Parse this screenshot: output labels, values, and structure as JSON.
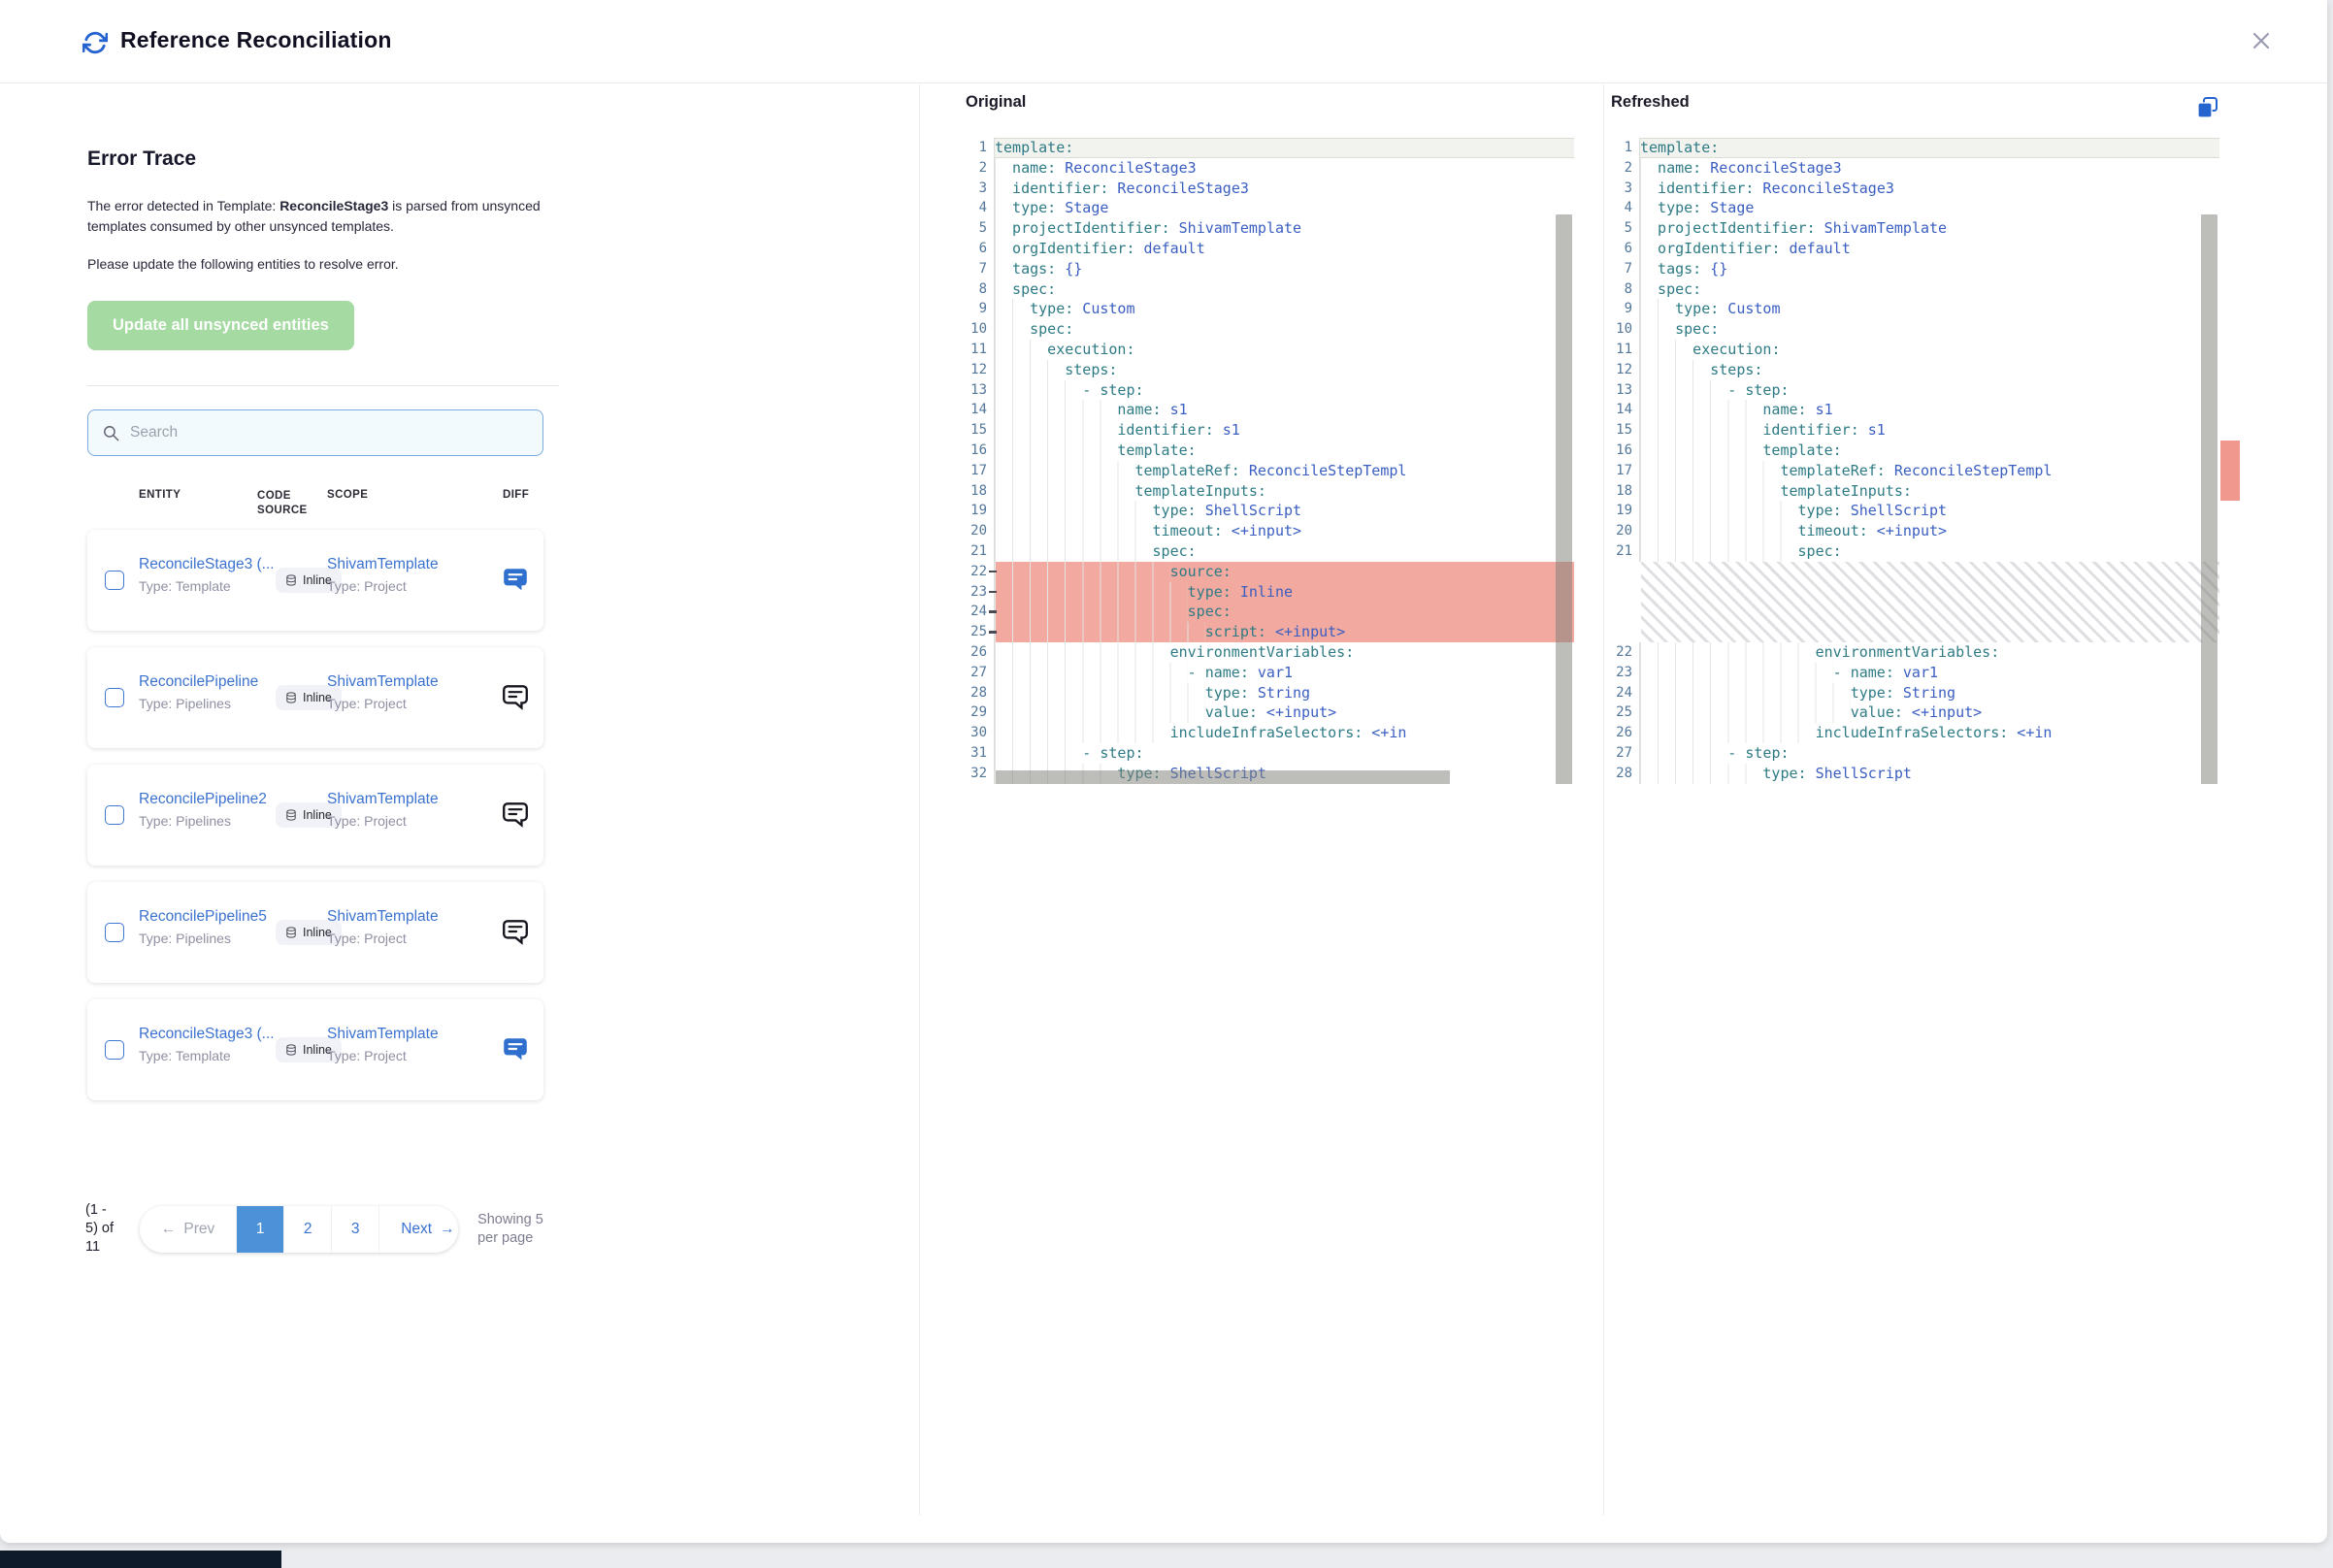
{
  "header": {
    "title": "Reference Reconciliation"
  },
  "error_trace": {
    "heading": "Error Trace",
    "desc_prefix": "The error detected in Template: ",
    "desc_bold": "ReconcileStage3",
    "desc_suffix": " is parsed from unsynced templates consumed by other unsynced templates.",
    "desc_line2": "Please update the following entities to resolve error.",
    "update_button": "Update all unsynced entities"
  },
  "search": {
    "placeholder": "Search"
  },
  "table": {
    "headers": {
      "entity": "ENTITY",
      "code_source": "CODE SOURCE",
      "scope": "SCOPE",
      "diff": "DIFF"
    },
    "rows": [
      {
        "entity": "ReconcileStage3 (...",
        "entity_type": "Type: Template",
        "code_source": "Inline",
        "scope": "ShivamTemplate",
        "scope_type": "Type: Project",
        "diff_icon": "blue"
      },
      {
        "entity": "ReconcilePipeline",
        "entity_type": "Type: Pipelines",
        "code_source": "Inline",
        "scope": "ShivamTemplate",
        "scope_type": "Type: Project",
        "diff_icon": "dark"
      },
      {
        "entity": "ReconcilePipeline2",
        "entity_type": "Type: Pipelines",
        "code_source": "Inline",
        "scope": "ShivamTemplate",
        "scope_type": "Type: Project",
        "diff_icon": "dark"
      },
      {
        "entity": "ReconcilePipeline5",
        "entity_type": "Type: Pipelines",
        "code_source": "Inline",
        "scope": "ShivamTemplate",
        "scope_type": "Type: Project",
        "diff_icon": "dark"
      },
      {
        "entity": "ReconcileStage3 (...",
        "entity_type": "Type: Template",
        "code_source": "Inline",
        "scope": "ShivamTemplate",
        "scope_type": "Type: Project",
        "diff_icon": "blue"
      }
    ]
  },
  "pagination": {
    "range_text": "(1 - 5) of 11",
    "prev_label": "Prev",
    "pages": [
      "1",
      "2",
      "3"
    ],
    "active_page": "1",
    "next_label": "Next",
    "per_page_text": "Showing 5 per page"
  },
  "diff_view": {
    "original_title": "Original",
    "refreshed_title": "Refreshed",
    "original_lines": [
      {
        "n": "1",
        "i": 0,
        "k": "template:",
        "v": "",
        "cur": true
      },
      {
        "n": "2",
        "i": 2,
        "k": "name:",
        "v": "ReconcileStage3"
      },
      {
        "n": "3",
        "i": 2,
        "k": "identifier:",
        "v": "ReconcileStage3"
      },
      {
        "n": "4",
        "i": 2,
        "k": "type:",
        "v": "Stage"
      },
      {
        "n": "5",
        "i": 2,
        "k": "projectIdentifier:",
        "v": "ShivamTemplate"
      },
      {
        "n": "6",
        "i": 2,
        "k": "orgIdentifier:",
        "v": "default"
      },
      {
        "n": "7",
        "i": 2,
        "k": "tags:",
        "v": "{}"
      },
      {
        "n": "8",
        "i": 2,
        "k": "spec:",
        "v": ""
      },
      {
        "n": "9",
        "i": 4,
        "k": "type:",
        "v": "Custom"
      },
      {
        "n": "10",
        "i": 4,
        "k": "spec:",
        "v": ""
      },
      {
        "n": "11",
        "i": 6,
        "k": "execution:",
        "v": ""
      },
      {
        "n": "12",
        "i": 8,
        "k": "steps:",
        "v": ""
      },
      {
        "n": "13",
        "i": 10,
        "k": "- step:",
        "v": ""
      },
      {
        "n": "14",
        "i": 14,
        "k": "name:",
        "v": "s1"
      },
      {
        "n": "15",
        "i": 14,
        "k": "identifier:",
        "v": "s1"
      },
      {
        "n": "16",
        "i": 14,
        "k": "template:",
        "v": ""
      },
      {
        "n": "17",
        "i": 16,
        "k": "templateRef:",
        "v": "ReconcileStepTempl"
      },
      {
        "n": "18",
        "i": 16,
        "k": "templateInputs:",
        "v": ""
      },
      {
        "n": "19",
        "i": 18,
        "k": "type:",
        "v": "ShellScript"
      },
      {
        "n": "20",
        "i": 18,
        "k": "timeout:",
        "v": "<+input>"
      },
      {
        "n": "21",
        "i": 18,
        "k": "spec:",
        "v": ""
      },
      {
        "n": "22",
        "i": 20,
        "k": "source:",
        "v": "",
        "del": true
      },
      {
        "n": "23",
        "i": 22,
        "k": "type:",
        "v": "Inline",
        "del": true
      },
      {
        "n": "24",
        "i": 22,
        "k": "spec:",
        "v": "",
        "del": true
      },
      {
        "n": "25",
        "i": 24,
        "k": "script:",
        "v": "<+input>",
        "del": true
      },
      {
        "n": "26",
        "i": 20,
        "k": "environmentVariables:",
        "v": ""
      },
      {
        "n": "27",
        "i": 22,
        "k": "- name:",
        "v": "var1"
      },
      {
        "n": "28",
        "i": 24,
        "k": "type:",
        "v": "String"
      },
      {
        "n": "29",
        "i": 24,
        "k": "value:",
        "v": "<+input>"
      },
      {
        "n": "30",
        "i": 20,
        "k": "includeInfraSelectors:",
        "v": "<+in"
      },
      {
        "n": "31",
        "i": 10,
        "k": "- step:",
        "v": ""
      },
      {
        "n": "32",
        "i": 14,
        "k": "type:",
        "v": "ShellScript"
      }
    ],
    "refreshed_lines": [
      {
        "n": "1",
        "i": 0,
        "k": "template:",
        "v": "",
        "cur": true
      },
      {
        "n": "2",
        "i": 2,
        "k": "name:",
        "v": "ReconcileStage3"
      },
      {
        "n": "3",
        "i": 2,
        "k": "identifier:",
        "v": "ReconcileStage3"
      },
      {
        "n": "4",
        "i": 2,
        "k": "type:",
        "v": "Stage"
      },
      {
        "n": "5",
        "i": 2,
        "k": "projectIdentifier:",
        "v": "ShivamTemplate"
      },
      {
        "n": "6",
        "i": 2,
        "k": "orgIdentifier:",
        "v": "default"
      },
      {
        "n": "7",
        "i": 2,
        "k": "tags:",
        "v": "{}"
      },
      {
        "n": "8",
        "i": 2,
        "k": "spec:",
        "v": ""
      },
      {
        "n": "9",
        "i": 4,
        "k": "type:",
        "v": "Custom"
      },
      {
        "n": "10",
        "i": 4,
        "k": "spec:",
        "v": ""
      },
      {
        "n": "11",
        "i": 6,
        "k": "execution:",
        "v": ""
      },
      {
        "n": "12",
        "i": 8,
        "k": "steps:",
        "v": ""
      },
      {
        "n": "13",
        "i": 10,
        "k": "- step:",
        "v": ""
      },
      {
        "n": "14",
        "i": 14,
        "k": "name:",
        "v": "s1"
      },
      {
        "n": "15",
        "i": 14,
        "k": "identifier:",
        "v": "s1"
      },
      {
        "n": "16",
        "i": 14,
        "k": "template:",
        "v": ""
      },
      {
        "n": "17",
        "i": 16,
        "k": "templateRef:",
        "v": "ReconcileStepTempl"
      },
      {
        "n": "18",
        "i": 16,
        "k": "templateInputs:",
        "v": ""
      },
      {
        "n": "19",
        "i": 18,
        "k": "type:",
        "v": "ShellScript"
      },
      {
        "n": "20",
        "i": 18,
        "k": "timeout:",
        "v": "<+input>"
      },
      {
        "n": "21",
        "i": 18,
        "k": "spec:",
        "v": ""
      },
      {
        "hatch": true
      },
      {
        "n": "22",
        "i": 20,
        "k": "environmentVariables:",
        "v": ""
      },
      {
        "n": "23",
        "i": 22,
        "k": "- name:",
        "v": "var1"
      },
      {
        "n": "24",
        "i": 24,
        "k": "type:",
        "v": "String"
      },
      {
        "n": "25",
        "i": 24,
        "k": "value:",
        "v": "<+input>"
      },
      {
        "n": "26",
        "i": 20,
        "k": "includeInfraSelectors:",
        "v": "<+in"
      },
      {
        "n": "27",
        "i": 10,
        "k": "- step:",
        "v": ""
      },
      {
        "n": "28",
        "i": 14,
        "k": "type:",
        "v": "ShellScript"
      }
    ]
  },
  "colors": {
    "accent": "#2563cf",
    "accent-light": "#4b92d8",
    "green": "#a5daa2",
    "teal": "#2e7b85",
    "code-blue": "#3a5ec1",
    "diff-red": "#f1a9a0",
    "marker-red": "#f0978e",
    "guide": "#e4e4e3",
    "link": "#3b72cf"
  }
}
